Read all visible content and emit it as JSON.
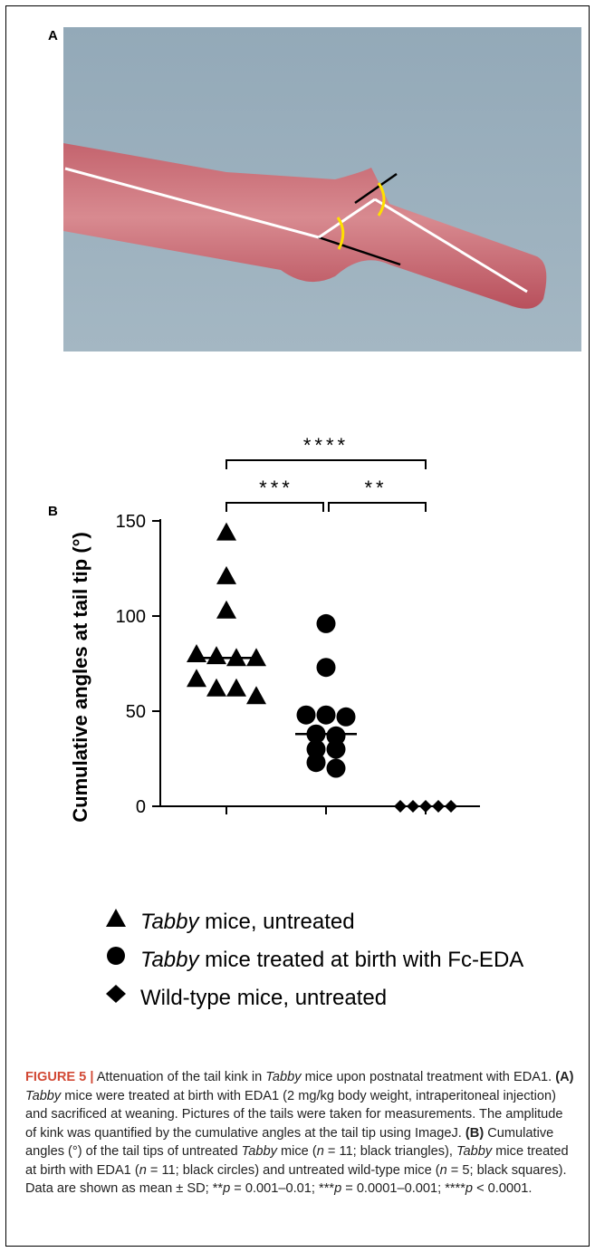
{
  "panel_a": {
    "label": "A",
    "description_icon": "tail-photo-with-angle-lines"
  },
  "panel_b": {
    "label": "B"
  },
  "chart_data": {
    "type": "scatter",
    "ylabel": "Cumulative angles at tail tip (°)",
    "ylim": [
      0,
      150
    ],
    "yticks": [
      0,
      50,
      100,
      150
    ],
    "series": [
      {
        "name": "Tabby mice, untreated",
        "marker": "triangle",
        "values": [
          144,
          121,
          103,
          80,
          79,
          78,
          78,
          67,
          62,
          62,
          58
        ],
        "median": 78
      },
      {
        "name": "Tabby mice treated at birth with Fc-EDA",
        "marker": "circle",
        "values": [
          96,
          73,
          48,
          48,
          47,
          38,
          37,
          30,
          30,
          23,
          20
        ],
        "median": 38
      },
      {
        "name": "Wild-type mice, untreated",
        "marker": "diamond",
        "values": [
          0,
          0,
          0,
          0,
          0
        ],
        "median": 0
      }
    ],
    "significance": [
      {
        "from": 0,
        "to": 2,
        "label": "****"
      },
      {
        "from": 0,
        "to": 1,
        "label": "***"
      },
      {
        "from": 1,
        "to": 2,
        "label": "**"
      }
    ],
    "colors": {
      "markers": "#000000"
    }
  },
  "legend": [
    {
      "marker": "triangle",
      "italic": "Tabby",
      "rest": " mice, untreated"
    },
    {
      "marker": "circle",
      "italic": "Tabby",
      "rest": " mice treated at birth with Fc-EDA"
    },
    {
      "marker": "diamond",
      "italic": "",
      "rest": "Wild-type mice, untreated"
    }
  ],
  "caption": {
    "figure_label": "FIGURE 5 |",
    "s1": " Attenuation of the tail kink in ",
    "tabby": "Tabby",
    "s2": " mice upon postnatal treatment with EDA1. ",
    "a_label": "(A)",
    "s3": " mice were treated at birth with EDA1 (2 mg/kg body weight, intraperitoneal injection) and sacrificed at weaning. Pictures of the tails were taken for measurements. The amplitude of kink was quantified by the cumulative angles at the tail tip using ImageJ. ",
    "b_label": "(B)",
    "s4": " Cumulative angles (°) of the tail tips of untreated ",
    "s5": " mice (",
    "n11a": "n",
    "s6": " = 11; black triangles), ",
    "s7": " mice treated at birth with EDA1 (",
    "n11b": "n",
    "s8": " = 11; black circles) and untreated wild-type mice (",
    "n5": "n",
    "s9": " = 5; black squares). Data are shown as mean ± SD; **",
    "p1": "p",
    "s10": " = 0.001–0.01; ***",
    "p2": "p",
    "s11": " = 0.0001–0.001; ****",
    "p3": "p",
    "s12": " < 0.0001."
  }
}
